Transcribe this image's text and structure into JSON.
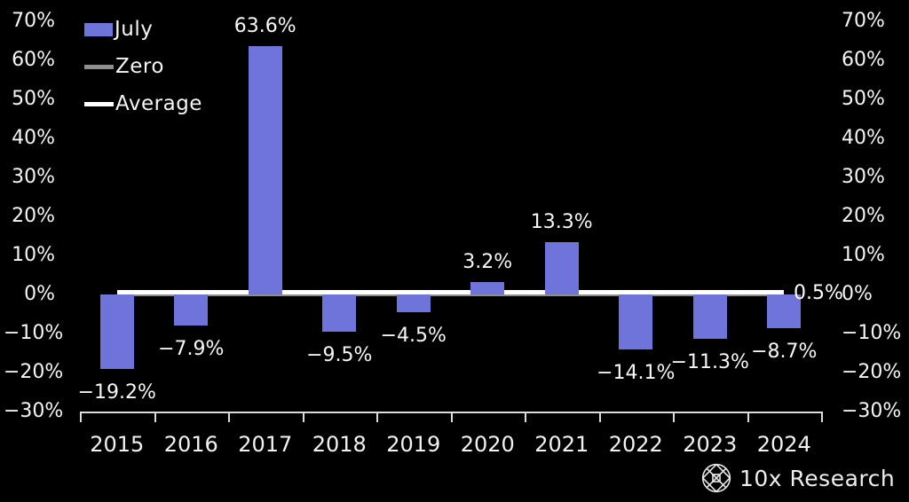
{
  "legend": {
    "items": [
      {
        "label": "July",
        "swatch": "bar",
        "color": "#6f74db"
      },
      {
        "label": "Zero",
        "swatch": "line",
        "color": "#8d8d8d"
      },
      {
        "label": "Average",
        "swatch": "line",
        "color": "#ffffff"
      }
    ]
  },
  "chart_data": {
    "type": "bar",
    "title": "",
    "series_name": "July",
    "categories": [
      "2015",
      "2016",
      "2017",
      "2018",
      "2019",
      "2020",
      "2021",
      "2022",
      "2023",
      "2024"
    ],
    "values": [
      -19.2,
      -7.9,
      63.6,
      -9.5,
      -4.5,
      3.2,
      13.3,
      -14.1,
      -11.3,
      -8.7
    ],
    "value_labels": [
      "−19.2%",
      "−7.9%",
      "63.6%",
      "−9.5%",
      "−4.5%",
      "3.2%",
      "13.3%",
      "−14.1%",
      "−11.3%",
      "−8.7%"
    ],
    "bar_color": "#6f74db",
    "ylim": [
      -30,
      70
    ],
    "yticks": [
      70,
      60,
      50,
      40,
      30,
      20,
      10,
      0,
      -10,
      -20,
      -30
    ],
    "ytick_labels": [
      "70%",
      "60%",
      "50%",
      "40%",
      "30%",
      "20%",
      "10%",
      "0%",
      "−10%",
      "−20%",
      "−30%"
    ],
    "zero_line": {
      "value": 0,
      "color": "#8d8d8d",
      "label": "Zero"
    },
    "average_line": {
      "value": 0.5,
      "color": "#ffffff",
      "label": "0.5%",
      "legend_label": "Average"
    },
    "grid": false,
    "legend_position": "top-left",
    "axis_label_sides": [
      "left",
      "right"
    ],
    "background_color": "#000000",
    "text_color": "#f5f5f5"
  },
  "branding": {
    "name": "10x Research"
  }
}
